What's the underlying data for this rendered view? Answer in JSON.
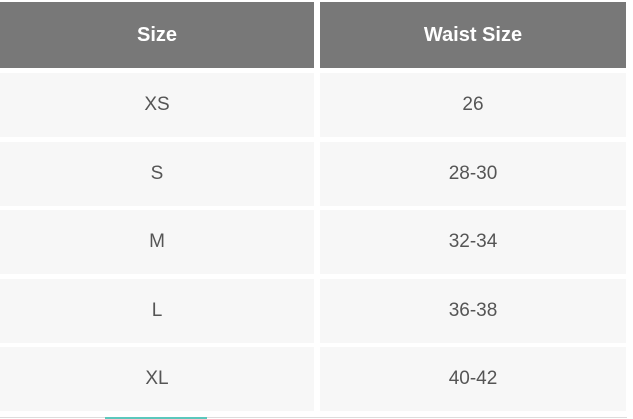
{
  "table": {
    "headers": [
      "Size",
      "Waist Size"
    ],
    "rows": [
      [
        "XS",
        "26"
      ],
      [
        "S",
        "28-30"
      ],
      [
        "M",
        "32-34"
      ],
      [
        "L",
        "36-38"
      ],
      [
        "XL",
        "40-42"
      ]
    ]
  },
  "colors": {
    "header_bg": "#787878",
    "cell_bg": "#f7f7f7",
    "accent": "#5cc8bd"
  }
}
